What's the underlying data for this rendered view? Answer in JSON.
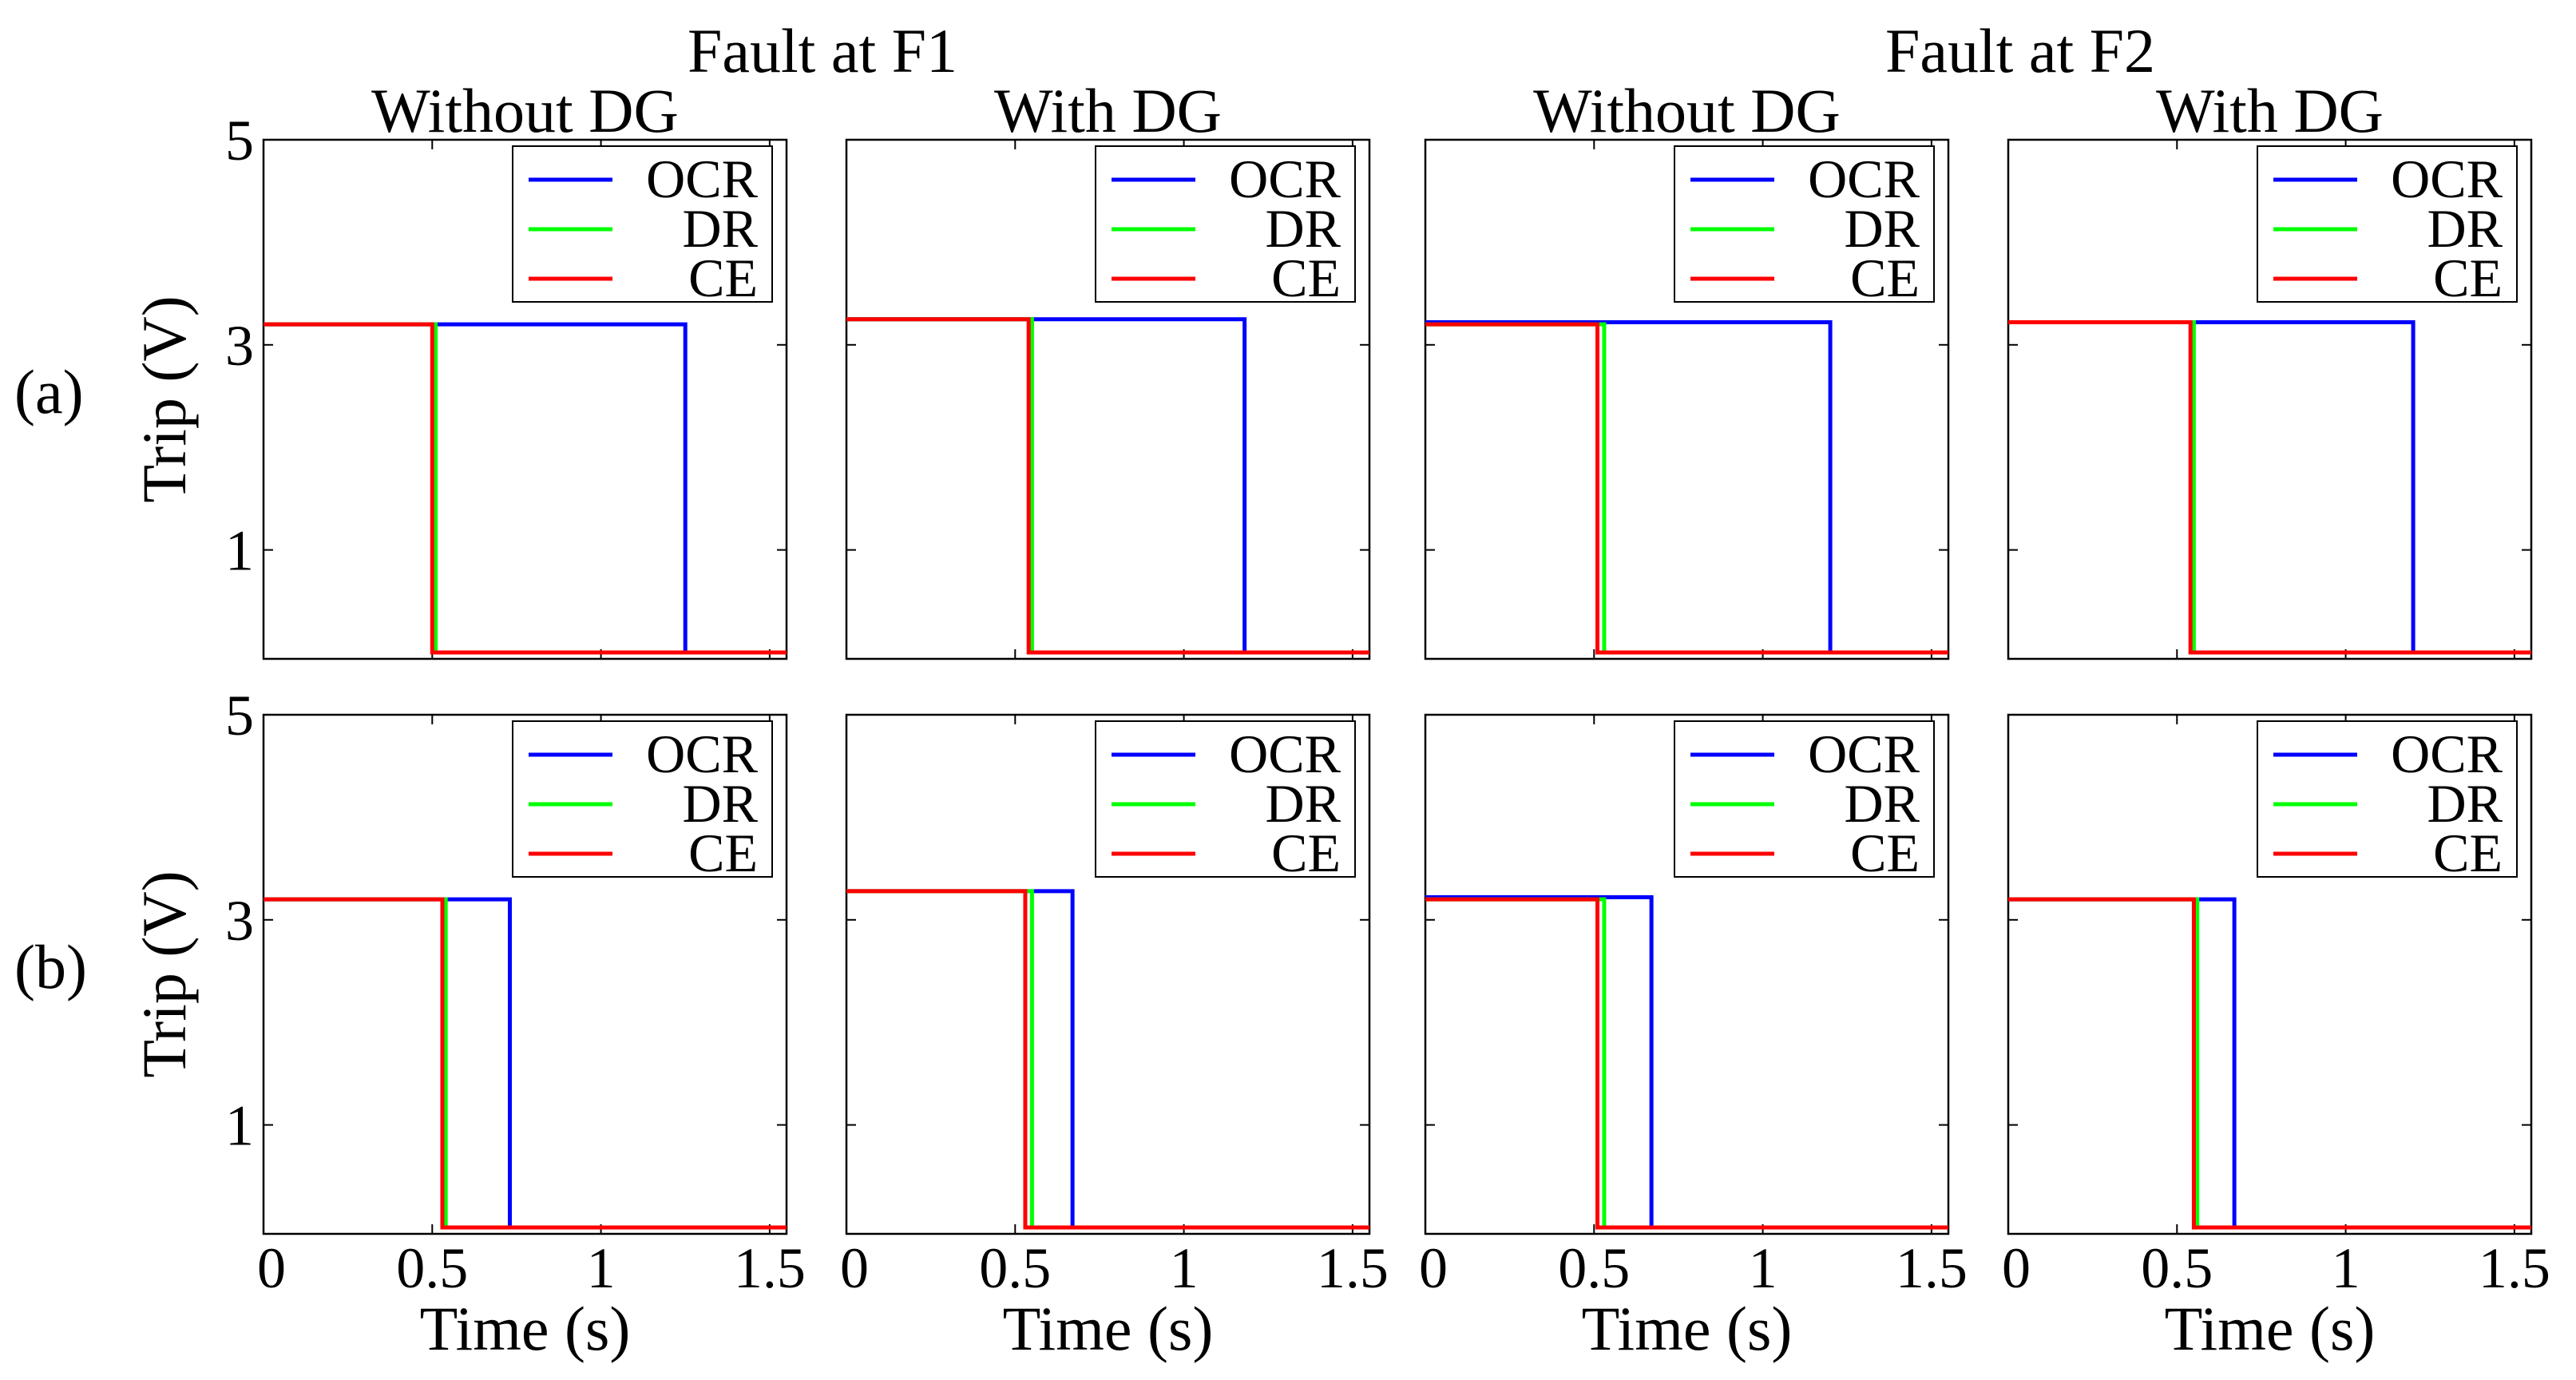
{
  "figure": {
    "group_titles": [
      "Fault at F1",
      "Fault at F2"
    ],
    "column_titles": [
      "Without DG",
      "With DG",
      "Without DG",
      "With DG"
    ],
    "row_labels": [
      "(a)",
      "(b)"
    ],
    "ylabel": "Trip (V)",
    "xlabel": "Time (s)",
    "y_ticks": [
      "1",
      "3",
      "5"
    ],
    "x_ticks": [
      "0",
      "0.5",
      "1",
      "1.5"
    ],
    "colors": {
      "OCR": "#0000ff",
      "DR": "#00ff00",
      "CE": "#ff0000"
    }
  },
  "chart_data": [
    {
      "type": "line",
      "id": "a1",
      "row": "(a)",
      "fault": "Fault at F1",
      "scenario": "Without DG",
      "xlim": [
        0,
        1.55
      ],
      "ylim": [
        0,
        5
      ],
      "legend": [
        "OCR",
        "DR",
        "CE"
      ],
      "legend_position": "top-right",
      "series": [
        {
          "name": "OCR",
          "high": 3.2,
          "low": 0,
          "trip_time": 1.25
        },
        {
          "name": "DR",
          "high": 3.2,
          "low": 0,
          "trip_time": 0.51
        },
        {
          "name": "CE",
          "high": 3.2,
          "low": 0,
          "trip_time": 0.5
        }
      ]
    },
    {
      "type": "line",
      "id": "a2",
      "row": "(a)",
      "fault": "Fault at F1",
      "scenario": "With DG",
      "xlim": [
        0,
        1.55
      ],
      "ylim": [
        0,
        5
      ],
      "legend": [
        "OCR",
        "DR",
        "CE"
      ],
      "legend_position": "top-right",
      "series": [
        {
          "name": "OCR",
          "high": 3.25,
          "low": 0,
          "trip_time": 1.18
        },
        {
          "name": "DR",
          "high": 3.25,
          "low": 0,
          "trip_time": 0.55
        },
        {
          "name": "CE",
          "high": 3.25,
          "low": 0,
          "trip_time": 0.54
        }
      ]
    },
    {
      "type": "line",
      "id": "a3",
      "row": "(a)",
      "fault": "Fault at F2",
      "scenario": "Without DG",
      "xlim": [
        0,
        1.55
      ],
      "ylim": [
        0,
        5
      ],
      "legend": [
        "OCR",
        "DR",
        "CE"
      ],
      "legend_position": "top-right",
      "series": [
        {
          "name": "OCR",
          "high": 3.22,
          "low": 0,
          "trip_time": 1.2
        },
        {
          "name": "DR",
          "high": 3.2,
          "low": 0,
          "trip_time": 0.53
        },
        {
          "name": "CE",
          "high": 3.2,
          "low": 0,
          "trip_time": 0.51
        }
      ]
    },
    {
      "type": "line",
      "id": "a4",
      "row": "(a)",
      "fault": "Fault at F2",
      "scenario": "With DG",
      "xlim": [
        0,
        1.55
      ],
      "ylim": [
        0,
        5
      ],
      "legend": [
        "OCR",
        "DR",
        "CE"
      ],
      "legend_position": "top-right",
      "series": [
        {
          "name": "OCR",
          "high": 3.22,
          "low": 0,
          "trip_time": 1.2
        },
        {
          "name": "DR",
          "high": 3.22,
          "low": 0,
          "trip_time": 0.55
        },
        {
          "name": "CE",
          "high": 3.22,
          "low": 0,
          "trip_time": 0.54
        }
      ]
    },
    {
      "type": "line",
      "id": "b1",
      "row": "(b)",
      "fault": "Fault at F1",
      "scenario": "Without DG",
      "xlim": [
        0,
        1.55
      ],
      "ylim": [
        0,
        5
      ],
      "legend": [
        "OCR",
        "DR",
        "CE"
      ],
      "legend_position": "top-right",
      "series": [
        {
          "name": "OCR",
          "high": 3.2,
          "low": 0,
          "trip_time": 0.73
        },
        {
          "name": "DR",
          "high": 3.2,
          "low": 0,
          "trip_time": 0.54
        },
        {
          "name": "CE",
          "high": 3.2,
          "low": 0,
          "trip_time": 0.53
        }
      ]
    },
    {
      "type": "line",
      "id": "b2",
      "row": "(b)",
      "fault": "Fault at F1",
      "scenario": "With DG",
      "xlim": [
        0,
        1.55
      ],
      "ylim": [
        0,
        5
      ],
      "legend": [
        "OCR",
        "DR",
        "CE"
      ],
      "legend_position": "top-right",
      "series": [
        {
          "name": "OCR",
          "high": 3.28,
          "low": 0,
          "trip_time": 0.67
        },
        {
          "name": "DR",
          "high": 3.28,
          "low": 0,
          "trip_time": 0.55
        },
        {
          "name": "CE",
          "high": 3.28,
          "low": 0,
          "trip_time": 0.53
        }
      ]
    },
    {
      "type": "line",
      "id": "b3",
      "row": "(b)",
      "fault": "Fault at F2",
      "scenario": "Without DG",
      "xlim": [
        0,
        1.55
      ],
      "ylim": [
        0,
        5
      ],
      "legend": [
        "OCR",
        "DR",
        "CE"
      ],
      "legend_position": "top-right",
      "series": [
        {
          "name": "OCR",
          "high": 3.22,
          "low": 0,
          "trip_time": 0.67
        },
        {
          "name": "DR",
          "high": 3.2,
          "low": 0,
          "trip_time": 0.53
        },
        {
          "name": "CE",
          "high": 3.2,
          "low": 0,
          "trip_time": 0.51
        }
      ]
    },
    {
      "type": "line",
      "id": "b4",
      "row": "(b)",
      "fault": "Fault at F2",
      "scenario": "With DG",
      "xlim": [
        0,
        1.55
      ],
      "ylim": [
        0,
        5
      ],
      "legend": [
        "OCR",
        "DR",
        "CE"
      ],
      "legend_position": "top-right",
      "series": [
        {
          "name": "OCR",
          "high": 3.2,
          "low": 0,
          "trip_time": 0.67
        },
        {
          "name": "DR",
          "high": 3.2,
          "low": 0,
          "trip_time": 0.56
        },
        {
          "name": "CE",
          "high": 3.2,
          "low": 0,
          "trip_time": 0.55
        }
      ]
    }
  ]
}
